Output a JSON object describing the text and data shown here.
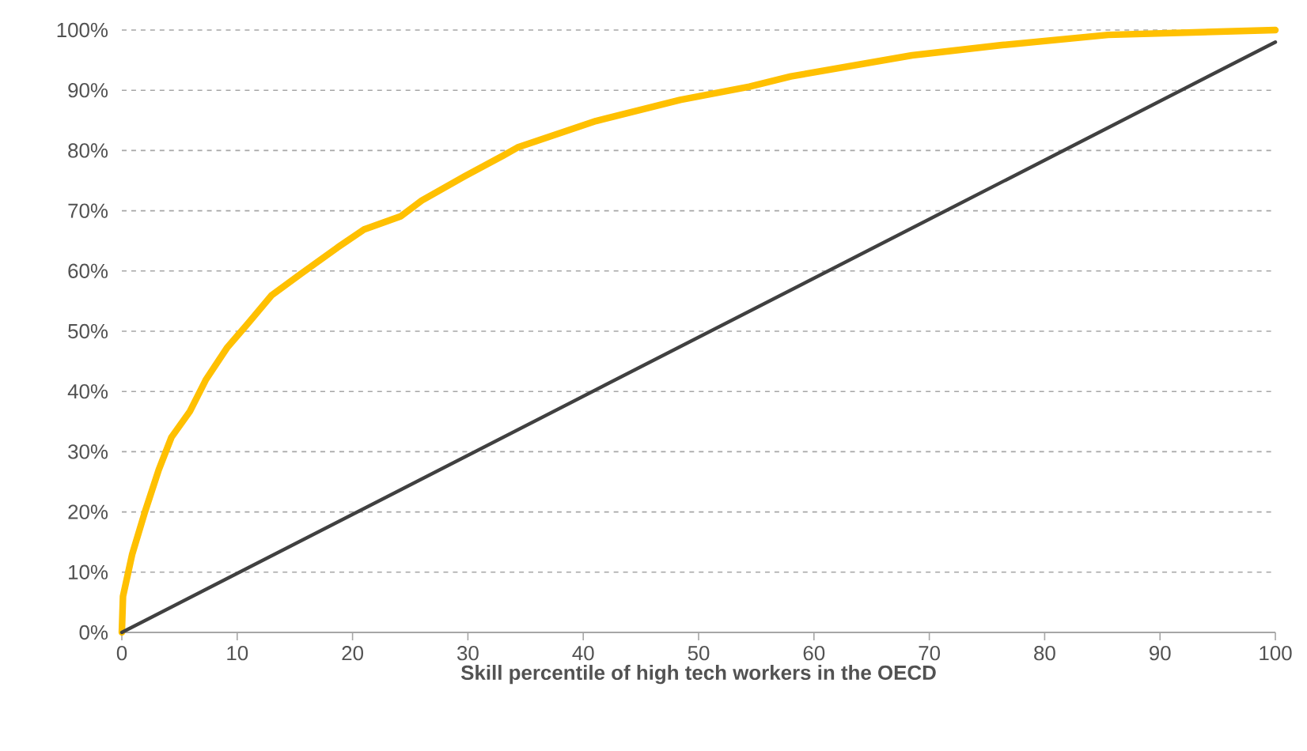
{
  "chart_data": {
    "type": "line",
    "xlabel": "Skill percentile of high tech workers in the OECD",
    "xlim": [
      0,
      100
    ],
    "xticks": [
      0,
      10,
      20,
      30,
      40,
      50,
      60,
      70,
      80,
      90,
      100
    ],
    "ylim": [
      0,
      100
    ],
    "yticks": [
      {
        "value": 0,
        "label": "0%"
      },
      {
        "value": 10,
        "label": "10%"
      },
      {
        "value": 20,
        "label": "20%"
      },
      {
        "value": 30,
        "label": "30%"
      },
      {
        "value": 40,
        "label": "40%"
      },
      {
        "value": 50,
        "label": "50%"
      },
      {
        "value": 60,
        "label": "60%"
      },
      {
        "value": 70,
        "label": "70%"
      },
      {
        "value": 80,
        "label": "80%"
      },
      {
        "value": 90,
        "label": "90%"
      },
      {
        "value": 100,
        "label": "100%"
      }
    ],
    "grid": "y",
    "line_style": "solid",
    "series": [
      {
        "color": "#ffc000",
        "x": [
          0,
          0.1,
          0.9,
          2.0,
          3.2,
          4.3,
          5.9,
          7.3,
          9.1,
          10.9,
          13.0,
          15.5,
          18.7,
          21.0,
          24.2,
          26.0,
          29.7,
          33.1,
          34.3,
          41.1,
          48.4,
          54.4,
          58.0,
          68.5,
          76.3,
          85.5,
          100
        ],
        "values": [
          0,
          6,
          13,
          20,
          27,
          32.4,
          36.7,
          42,
          47.2,
          51.2,
          56,
          59.5,
          63.9,
          66.9,
          69.1,
          71.7,
          75.7,
          79.2,
          80.5,
          84.9,
          88.4,
          90.6,
          92.3,
          95.8,
          97.5,
          99.2,
          100
        ]
      },
      {
        "color": "#404040",
        "x": [
          0,
          100
        ],
        "values": [
          0,
          98
        ]
      }
    ]
  }
}
